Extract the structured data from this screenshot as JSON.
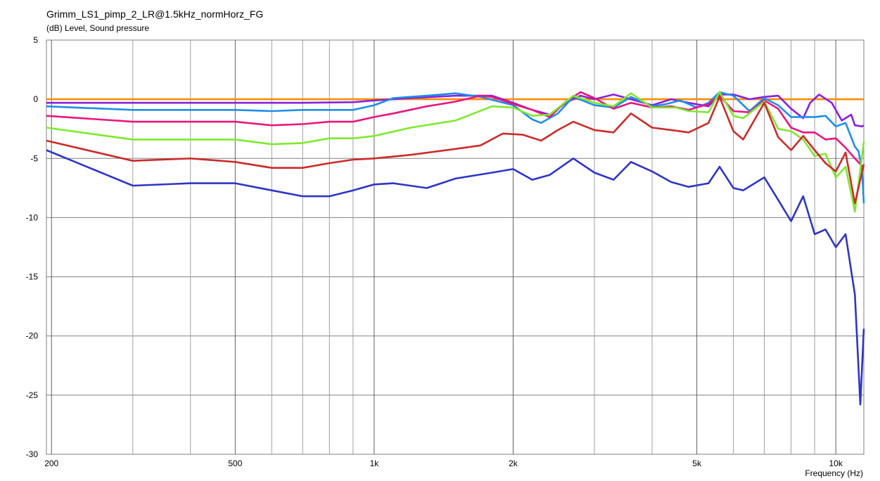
{
  "chart_data": {
    "type": "line",
    "title": "Grimm_LS1_pimp_2_LR@1.5kHz_normHorz_FG",
    "ylabel": "(dB)  Level, Sound pressure",
    "xlabel": "Frequency  (Hz)",
    "xscale": "log",
    "xlim": [
      195,
      11500
    ],
    "ylim": [
      -30,
      5
    ],
    "grid": true,
    "x_tick_values": [
      200,
      500,
      1000,
      2000,
      5000,
      10000
    ],
    "x_tick_labels": [
      "200",
      "500",
      "1k",
      "2k",
      "5k",
      "10k"
    ],
    "x_minor_grid": [
      300,
      400,
      600,
      700,
      800,
      900,
      3000,
      4000,
      6000,
      7000,
      8000,
      9000
    ],
    "y_ticks": [
      5,
      0,
      -5,
      -10,
      -15,
      -20,
      -25,
      -30
    ],
    "series": [
      {
        "color": "#ff8c00",
        "points": [
          [
            195,
            0
          ],
          [
            11500,
            0
          ]
        ]
      },
      {
        "color": "#8a1fe0",
        "points": [
          [
            195,
            -0.3
          ],
          [
            300,
            -0.3
          ],
          [
            500,
            -0.3
          ],
          [
            700,
            -0.3
          ],
          [
            900,
            -0.25
          ],
          [
            1000,
            -0.1
          ],
          [
            1200,
            0.1
          ],
          [
            1500,
            0.3
          ],
          [
            1800,
            0.3
          ],
          [
            2000,
            -0.3
          ],
          [
            2200,
            -0.9
          ],
          [
            2400,
            -1.3
          ],
          [
            2600,
            -0.3
          ],
          [
            2800,
            0.3
          ],
          [
            3000,
            0
          ],
          [
            3300,
            0.4
          ],
          [
            3600,
            0
          ],
          [
            4000,
            -0.5
          ],
          [
            4400,
            0
          ],
          [
            4800,
            -0.3
          ],
          [
            5300,
            -0.6
          ],
          [
            5600,
            0.4
          ],
          [
            6000,
            0.4
          ],
          [
            6500,
            0
          ],
          [
            7000,
            0.2
          ],
          [
            7500,
            0.3
          ],
          [
            8000,
            -0.8
          ],
          [
            8500,
            -1.6
          ],
          [
            8800,
            -0.3
          ],
          [
            9200,
            0.4
          ],
          [
            9800,
            -0.3
          ],
          [
            10300,
            -1.8
          ],
          [
            10800,
            -1.3
          ],
          [
            11000,
            -2.2
          ],
          [
            11400,
            -2.3
          ],
          [
            11500,
            -2.2
          ]
        ]
      },
      {
        "color": "#1e8ee6",
        "points": [
          [
            195,
            -0.6
          ],
          [
            300,
            -0.9
          ],
          [
            500,
            -0.9
          ],
          [
            600,
            -1
          ],
          [
            700,
            -0.9
          ],
          [
            900,
            -0.9
          ],
          [
            1000,
            -0.5
          ],
          [
            1100,
            0.1
          ],
          [
            1300,
            0.3
          ],
          [
            1500,
            0.5
          ],
          [
            1700,
            0.2
          ],
          [
            2000,
            -0.5
          ],
          [
            2200,
            -1.7
          ],
          [
            2300,
            -2
          ],
          [
            2500,
            -1.2
          ],
          [
            2700,
            0.2
          ],
          [
            3000,
            -0.5
          ],
          [
            3300,
            -0.7
          ],
          [
            3600,
            0.2
          ],
          [
            4000,
            -0.6
          ],
          [
            4300,
            -0.4
          ],
          [
            4600,
            -0.1
          ],
          [
            5000,
            -0.7
          ],
          [
            5300,
            -0.3
          ],
          [
            5600,
            0.6
          ],
          [
            6000,
            0.3
          ],
          [
            6500,
            -1
          ],
          [
            7000,
            0.1
          ],
          [
            7500,
            -0.5
          ],
          [
            8000,
            -1.5
          ],
          [
            8500,
            -1.5
          ],
          [
            9000,
            -1.5
          ],
          [
            9500,
            -1.4
          ],
          [
            10000,
            -2.3
          ],
          [
            10500,
            -2
          ],
          [
            11000,
            -4
          ],
          [
            11200,
            -4.4
          ],
          [
            11400,
            -6
          ],
          [
            11500,
            -8.8
          ]
        ]
      },
      {
        "color": "#e8177d",
        "points": [
          [
            195,
            -1.4
          ],
          [
            300,
            -1.9
          ],
          [
            500,
            -1.9
          ],
          [
            600,
            -2.2
          ],
          [
            700,
            -2.1
          ],
          [
            800,
            -1.9
          ],
          [
            900,
            -1.9
          ],
          [
            1000,
            -1.5
          ],
          [
            1100,
            -1.2
          ],
          [
            1300,
            -0.6
          ],
          [
            1500,
            -0.2
          ],
          [
            1700,
            0.3
          ],
          [
            1800,
            0.2
          ],
          [
            2000,
            -0.4
          ],
          [
            2200,
            -0.9
          ],
          [
            2400,
            -1.5
          ],
          [
            2600,
            -0.2
          ],
          [
            2800,
            0.6
          ],
          [
            3000,
            0.1
          ],
          [
            3300,
            -0.8
          ],
          [
            3600,
            -0.3
          ],
          [
            4000,
            -0.7
          ],
          [
            4400,
            -0.6
          ],
          [
            4800,
            -0.9
          ],
          [
            5300,
            -0.4
          ],
          [
            5600,
            0.3
          ],
          [
            6000,
            -1
          ],
          [
            6500,
            -1.1
          ],
          [
            7000,
            -0.1
          ],
          [
            7500,
            -0.8
          ],
          [
            8000,
            -2.4
          ],
          [
            8500,
            -2.8
          ],
          [
            9000,
            -2.8
          ],
          [
            9500,
            -3.4
          ],
          [
            10000,
            -3.3
          ],
          [
            10500,
            -4.1
          ],
          [
            11000,
            -5
          ],
          [
            11500,
            -5.8
          ]
        ]
      },
      {
        "color": "#7ee82e",
        "points": [
          [
            195,
            -2.4
          ],
          [
            300,
            -3.4
          ],
          [
            400,
            -3.4
          ],
          [
            500,
            -3.4
          ],
          [
            600,
            -3.8
          ],
          [
            700,
            -3.7
          ],
          [
            800,
            -3.3
          ],
          [
            900,
            -3.3
          ],
          [
            1000,
            -3.1
          ],
          [
            1200,
            -2.4
          ],
          [
            1500,
            -1.8
          ],
          [
            1800,
            -0.6
          ],
          [
            2000,
            -0.7
          ],
          [
            2200,
            -1.4
          ],
          [
            2400,
            -1.3
          ],
          [
            2700,
            0.3
          ],
          [
            3000,
            -0.3
          ],
          [
            3300,
            -0.6
          ],
          [
            3600,
            0.5
          ],
          [
            4000,
            -0.7
          ],
          [
            4500,
            -0.7
          ],
          [
            4800,
            -1
          ],
          [
            5300,
            -1.1
          ],
          [
            5600,
            0.6
          ],
          [
            6000,
            -1.4
          ],
          [
            6300,
            -1.6
          ],
          [
            7000,
            -0.2
          ],
          [
            7500,
            -2.5
          ],
          [
            8000,
            -2.7
          ],
          [
            8500,
            -3.4
          ],
          [
            9000,
            -4.8
          ],
          [
            9500,
            -4.6
          ],
          [
            10000,
            -6.6
          ],
          [
            10500,
            -5.7
          ],
          [
            11000,
            -9.5
          ],
          [
            11500,
            -3.6
          ]
        ]
      },
      {
        "color": "#cc2b2b",
        "points": [
          [
            195,
            -3.5
          ],
          [
            300,
            -5.2
          ],
          [
            400,
            -5
          ],
          [
            500,
            -5.3
          ],
          [
            600,
            -5.8
          ],
          [
            700,
            -5.8
          ],
          [
            800,
            -5.4
          ],
          [
            900,
            -5.1
          ],
          [
            1000,
            -5
          ],
          [
            1200,
            -4.7
          ],
          [
            1500,
            -4.2
          ],
          [
            1700,
            -3.9
          ],
          [
            1900,
            -2.9
          ],
          [
            2100,
            -3
          ],
          [
            2300,
            -3.5
          ],
          [
            2500,
            -2.6
          ],
          [
            2700,
            -1.9
          ],
          [
            3000,
            -2.6
          ],
          [
            3300,
            -2.8
          ],
          [
            3600,
            -1.2
          ],
          [
            4000,
            -2.4
          ],
          [
            4400,
            -2.6
          ],
          [
            4800,
            -2.8
          ],
          [
            5300,
            -2
          ],
          [
            5600,
            0.2
          ],
          [
            6000,
            -2.7
          ],
          [
            6300,
            -3.4
          ],
          [
            7000,
            -0.3
          ],
          [
            7500,
            -3.2
          ],
          [
            8000,
            -4.3
          ],
          [
            8500,
            -3.1
          ],
          [
            9000,
            -4.3
          ],
          [
            9500,
            -5.4
          ],
          [
            10000,
            -6.1
          ],
          [
            10500,
            -4.5
          ],
          [
            11000,
            -8.8
          ],
          [
            11500,
            -5.5
          ]
        ]
      },
      {
        "color": "#2e35c6",
        "points": [
          [
            195,
            -4.3
          ],
          [
            300,
            -7.3
          ],
          [
            400,
            -7.1
          ],
          [
            500,
            -7.1
          ],
          [
            600,
            -7.7
          ],
          [
            700,
            -8.2
          ],
          [
            800,
            -8.2
          ],
          [
            900,
            -7.7
          ],
          [
            1000,
            -7.2
          ],
          [
            1100,
            -7.1
          ],
          [
            1300,
            -7.5
          ],
          [
            1500,
            -6.7
          ],
          [
            1800,
            -6.2
          ],
          [
            2000,
            -5.9
          ],
          [
            2200,
            -6.8
          ],
          [
            2400,
            -6.4
          ],
          [
            2700,
            -5
          ],
          [
            3000,
            -6.2
          ],
          [
            3300,
            -6.8
          ],
          [
            3600,
            -5.3
          ],
          [
            4000,
            -6.1
          ],
          [
            4400,
            -7
          ],
          [
            4800,
            -7.4
          ],
          [
            5300,
            -7.1
          ],
          [
            5600,
            -5.7
          ],
          [
            6000,
            -7.5
          ],
          [
            6300,
            -7.7
          ],
          [
            7000,
            -6.6
          ],
          [
            7500,
            -8.5
          ],
          [
            8000,
            -10.3
          ],
          [
            8500,
            -8.2
          ],
          [
            9000,
            -11.4
          ],
          [
            9500,
            -11
          ],
          [
            10000,
            -12.5
          ],
          [
            10500,
            -11.4
          ],
          [
            11000,
            -16.5
          ],
          [
            11300,
            -25.8
          ],
          [
            11500,
            -19.4
          ]
        ]
      }
    ]
  }
}
